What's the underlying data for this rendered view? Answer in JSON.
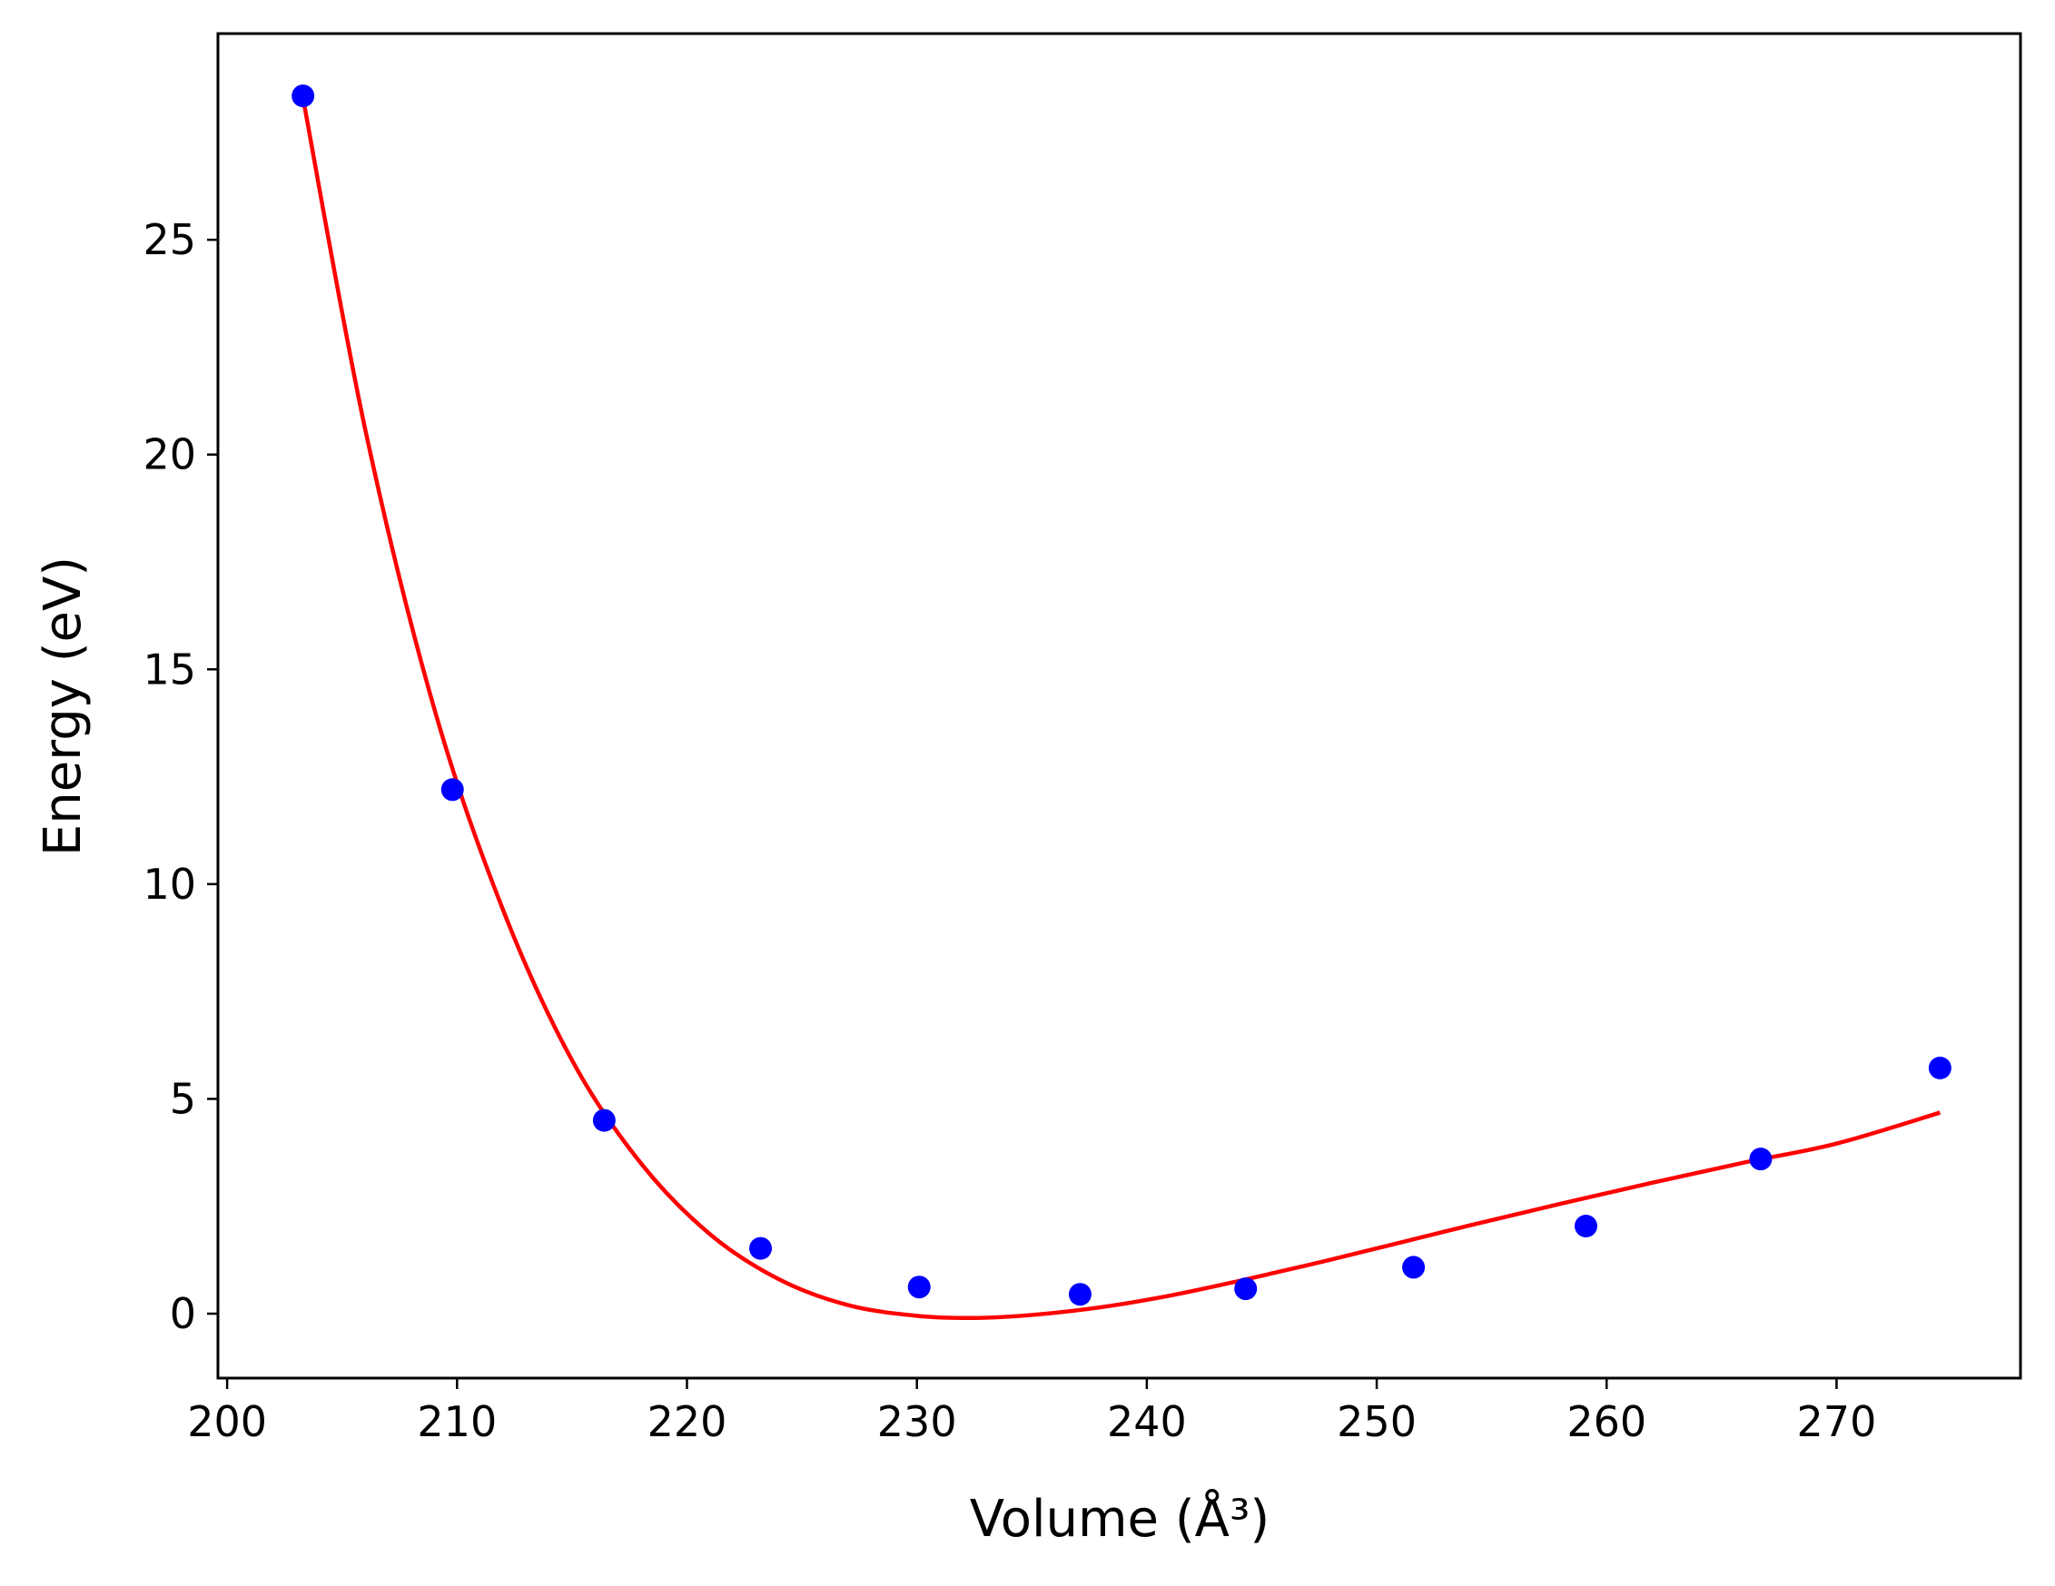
{
  "chart_data": {
    "type": "scatter",
    "title": "",
    "xlabel": "Volume (Å³)",
    "ylabel": "Energy (eV)",
    "xlim": [
      199.6,
      278
    ],
    "ylim": [
      -1.5,
      29.8
    ],
    "xticks": [
      200,
      210,
      220,
      230,
      240,
      250,
      260,
      270
    ],
    "yticks": [
      0,
      5,
      10,
      15,
      20,
      25
    ],
    "grid": false,
    "legend": "none",
    "series": [
      {
        "kind": "points",
        "color": "#0000ff",
        "x": [
          203.3,
          209.8,
          216.4,
          223.2,
          230.1,
          237.1,
          244.3,
          251.6,
          259.1,
          266.7,
          274.5
        ],
        "y": [
          28.35,
          12.2,
          4.5,
          1.52,
          0.62,
          0.45,
          0.58,
          1.08,
          2.04,
          3.6,
          5.72
        ]
      },
      {
        "kind": "fit-curve",
        "color": "#ff0000",
        "x": [
          203.3,
          206,
          209,
          212,
          215,
          218,
          221,
          224,
          227,
          230,
          232.5,
          235,
          238,
          241,
          244,
          247,
          250,
          254,
          258,
          262,
          266,
          270,
          274.5
        ],
        "y": [
          28.3,
          20.6,
          14.1,
          9.4,
          5.9,
          3.5,
          1.85,
          0.8,
          0.2,
          -0.05,
          -0.1,
          -0.03,
          0.15,
          0.42,
          0.76,
          1.13,
          1.52,
          2.05,
          2.56,
          3.05,
          3.52,
          3.96,
          4.68
        ]
      }
    ]
  }
}
